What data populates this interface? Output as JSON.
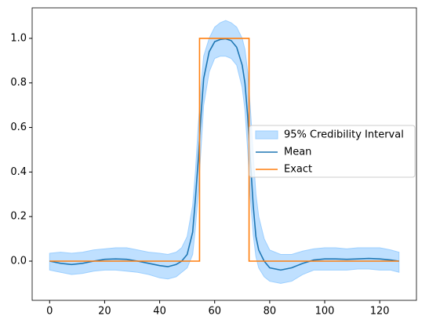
{
  "chart_data": {
    "type": "line",
    "x": [
      0,
      4,
      8,
      12,
      16,
      20,
      24,
      28,
      32,
      36,
      40,
      43,
      46,
      48,
      50,
      52,
      53,
      54,
      55,
      56,
      58,
      60,
      62,
      64,
      66,
      68,
      70,
      71,
      72,
      73,
      74,
      75,
      76,
      78,
      80,
      84,
      88,
      92,
      96,
      100,
      104,
      108,
      112,
      116,
      120,
      124,
      127
    ],
    "series": [
      {
        "name": "95% Credibility Interval",
        "color": "#bfe0ff",
        "edge": "#9ccfff",
        "upper": [
          0.035,
          0.04,
          0.035,
          0.04,
          0.05,
          0.055,
          0.06,
          0.06,
          0.05,
          0.04,
          0.035,
          0.03,
          0.04,
          0.06,
          0.11,
          0.25,
          0.4,
          0.6,
          0.78,
          0.92,
          1.0,
          1.05,
          1.07,
          1.08,
          1.07,
          1.05,
          1.0,
          0.95,
          0.85,
          0.68,
          0.48,
          0.3,
          0.2,
          0.1,
          0.05,
          0.03,
          0.03,
          0.045,
          0.055,
          0.06,
          0.06,
          0.055,
          0.06,
          0.06,
          0.06,
          0.05,
          0.04
        ],
        "lower": [
          -0.04,
          -0.05,
          -0.06,
          -0.055,
          -0.045,
          -0.04,
          -0.04,
          -0.045,
          -0.05,
          -0.06,
          -0.075,
          -0.08,
          -0.07,
          -0.05,
          -0.03,
          0.03,
          0.15,
          0.3,
          0.5,
          0.7,
          0.85,
          0.91,
          0.92,
          0.92,
          0.91,
          0.88,
          0.78,
          0.68,
          0.5,
          0.28,
          0.12,
          0.02,
          -0.03,
          -0.07,
          -0.09,
          -0.1,
          -0.09,
          -0.06,
          -0.04,
          -0.04,
          -0.04,
          -0.04,
          -0.035,
          -0.035,
          -0.04,
          -0.04,
          -0.05
        ]
      },
      {
        "name": "Mean",
        "color": "#1f77b4",
        "values": [
          0,
          -0.01,
          -0.015,
          -0.01,
          0,
          0.008,
          0.01,
          0.008,
          0,
          -0.01,
          -0.02,
          -0.025,
          -0.015,
          0,
          0.03,
          0.13,
          0.28,
          0.45,
          0.65,
          0.82,
          0.94,
          0.985,
          0.995,
          0.998,
          0.99,
          0.96,
          0.88,
          0.8,
          0.65,
          0.45,
          0.25,
          0.11,
          0.05,
          0,
          -0.03,
          -0.04,
          -0.03,
          -0.01,
          0.005,
          0.01,
          0.01,
          0.008,
          0.01,
          0.012,
          0.01,
          0.005,
          0
        ]
      },
      {
        "name": "Exact",
        "color": "#ff7f0e",
        "x": [
          0,
          54.5,
          54.5,
          72.5,
          72.5,
          127
        ],
        "values": [
          0,
          0,
          1,
          1,
          0,
          0
        ]
      }
    ],
    "xlim": [
      -6.35,
      133.35
    ],
    "ylim": [
      -0.176,
      1.137
    ],
    "xticks": [
      0,
      20,
      40,
      60,
      80,
      100,
      120
    ],
    "yticks": [
      {
        "value": 0,
        "label": "0.0"
      },
      0.2,
      0.4,
      0.6,
      0.8,
      {
        "value": 1,
        "label": "1.0"
      }
    ],
    "legend": "center right"
  }
}
